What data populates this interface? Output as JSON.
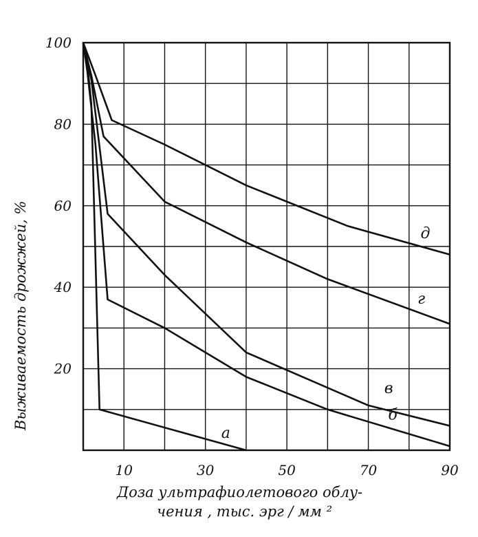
{
  "chart_data": {
    "type": "line",
    "xlabel_line1": "Доза ультрафиолетового облу-",
    "xlabel_line2": "чения , тыс. эрг / мм ²",
    "ylabel": "Выживаемость дрожжей, %",
    "xlim": [
      0,
      90
    ],
    "ylim": [
      0,
      100
    ],
    "x_tick_labels": [
      "10",
      "30",
      "50",
      "70",
      "90"
    ],
    "y_tick_labels": [
      "100",
      "80",
      "60",
      "40",
      "20"
    ],
    "grid": true,
    "series": [
      {
        "name": "а",
        "x": [
          0,
          1,
          2,
          4,
          40
        ],
        "y": [
          100,
          95,
          85,
          10,
          0
        ]
      },
      {
        "name": "б",
        "x": [
          0,
          1,
          3,
          6,
          20,
          40,
          60,
          90
        ],
        "y": [
          100,
          93,
          75,
          37,
          30,
          18,
          10,
          1
        ]
      },
      {
        "name": "в",
        "x": [
          0,
          2,
          6,
          20,
          40,
          70,
          90
        ],
        "y": [
          100,
          91,
          58,
          43,
          24,
          11,
          6
        ]
      },
      {
        "name": "г",
        "x": [
          0,
          2,
          5,
          20,
          40,
          60,
          90
        ],
        "y": [
          100,
          92,
          77,
          61,
          51,
          42,
          31
        ]
      },
      {
        "name": "д",
        "x": [
          0,
          3,
          7,
          20,
          40,
          65,
          90
        ],
        "y": [
          100,
          92,
          81,
          75,
          65,
          55,
          48
        ]
      }
    ]
  }
}
